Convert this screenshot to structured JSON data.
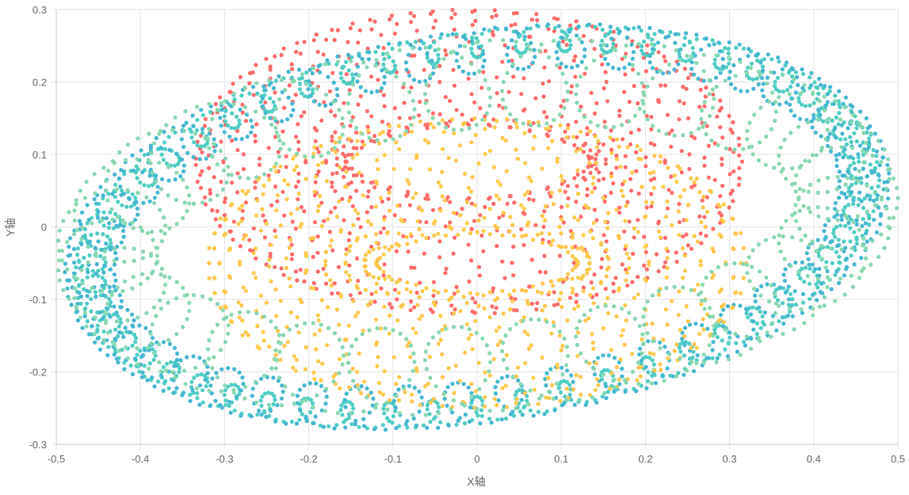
{
  "chart_data": {
    "type": "scatter",
    "xlabel": "X轴",
    "ylabel": "Y轴",
    "xlim": [
      -0.5,
      0.5
    ],
    "ylim": [
      -0.3,
      0.3
    ],
    "x_ticks": [
      "-0.5",
      "-0.4",
      "-0.3",
      "-0.2",
      "-0.1",
      "0",
      "0.1",
      "0.2",
      "0.3",
      "0.4",
      "0.5"
    ],
    "y_ticks": [
      "0.3",
      "0.2",
      "0.1",
      "0",
      "-0.1",
      "-0.2",
      "-0.3"
    ],
    "grid": true,
    "legend": "none",
    "series": [
      {
        "color": "#FF6B6B",
        "cx": -0.25,
        "cy": 0.17,
        "r": 0.1,
        "note_points": 600
      },
      {
        "color": "#FFC94D",
        "cx": 0.21,
        "cy": -0.14,
        "r": 0.1,
        "note_points": 600
      },
      {
        "color": "#4ECDC4",
        "cx": -0.04,
        "cy": -0.24,
        "r": 0.01,
        "note_points": 600
      },
      {
        "color": "#45B7D1",
        "cx": 0.04,
        "cy": 0.25,
        "r": 0.01,
        "note_points": 600
      },
      {
        "color": "#88D8B0",
        "cx": -0.45,
        "cy": 0.03,
        "r": 0.01,
        "note_points": 600
      }
    ]
  }
}
